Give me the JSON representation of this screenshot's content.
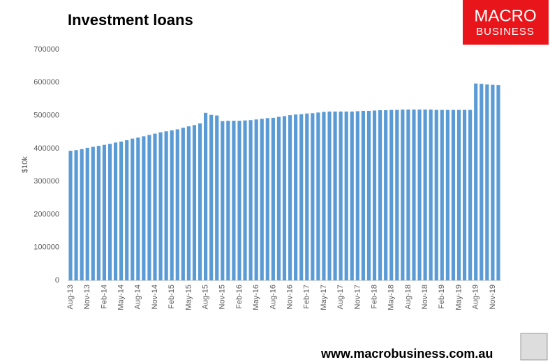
{
  "chart_data": {
    "type": "bar",
    "title": "Investment loans",
    "y_label": "$10k",
    "logo": [
      "MACRO",
      "BUSINESS"
    ],
    "footer": "www.macrobusiness.com.au",
    "categories": [
      "Aug-13",
      null,
      null,
      "Nov-13",
      null,
      null,
      "Feb-14",
      null,
      null,
      "May-14",
      null,
      null,
      "Aug-14",
      null,
      null,
      "Nov-14",
      null,
      null,
      "Feb-15",
      null,
      null,
      "May-15",
      null,
      null,
      "Aug-15",
      null,
      null,
      "Nov-15",
      null,
      null,
      "Feb-16",
      null,
      null,
      "May-16",
      null,
      null,
      "Aug-16",
      null,
      null,
      "Nov-16",
      null,
      null,
      "Feb-17",
      null,
      null,
      "May-17",
      null,
      null,
      "Aug-17",
      null,
      null,
      "Nov-17",
      null,
      null,
      "Feb-18",
      null,
      null,
      "May-18",
      null,
      null,
      "Aug-18",
      null,
      null,
      "Nov-18",
      null,
      null,
      "Feb-19",
      null,
      null,
      "May-19",
      null,
      null,
      "Aug-19",
      null,
      null,
      "Nov-19",
      null
    ],
    "values": [
      393000,
      395000,
      398000,
      402000,
      405000,
      408000,
      411000,
      414000,
      418000,
      421000,
      425000,
      430000,
      433000,
      437000,
      441000,
      445000,
      449000,
      452000,
      455000,
      458000,
      463000,
      467000,
      471000,
      476000,
      508000,
      502000,
      500000,
      483000,
      484000,
      484000,
      484000,
      485000,
      486000,
      488000,
      490000,
      492000,
      493000,
      496000,
      498000,
      501000,
      503000,
      504000,
      506000,
      507000,
      509000,
      511000,
      512000,
      512000,
      512000,
      512000,
      512000,
      513000,
      514000,
      514000,
      515000,
      516000,
      516000,
      517000,
      517000,
      518000,
      518000,
      518000,
      518000,
      518000,
      518000,
      517000,
      517000,
      517000,
      517000,
      517000,
      517000,
      517000,
      597000,
      596000,
      594000,
      593000,
      592000
    ],
    "color": "#5b9bd5",
    "ylim": [
      0,
      700000
    ],
    "yticks": [
      0,
      100000,
      200000,
      300000,
      400000,
      500000,
      600000,
      700000
    ],
    "grid": false
  }
}
